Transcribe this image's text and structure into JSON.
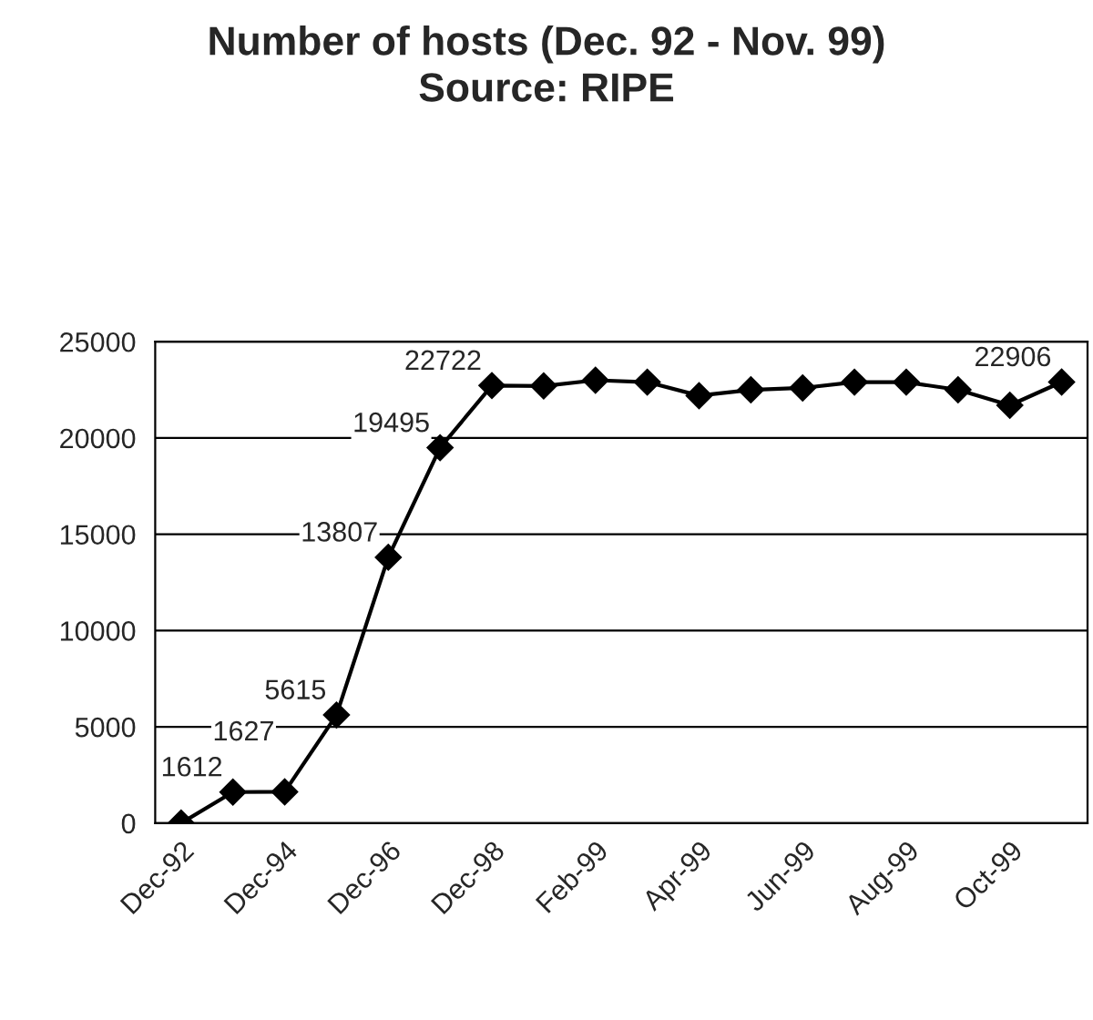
{
  "chart_data": {
    "type": "line",
    "title": "Number of hosts (Dec. 92 - Nov. 99)\nSource: RIPE",
    "categories": [
      "Dec-92",
      null,
      "Dec-94",
      null,
      "Dec-96",
      null,
      "Dec-98",
      null,
      "Feb-99",
      null,
      "Apr-99",
      null,
      "Jun-99",
      null,
      "Aug-99",
      null,
      "Oct-99",
      null
    ],
    "series": [
      {
        "color": "#000000",
        "values": [
          0,
          1612,
          1627,
          5615,
          13807,
          19495,
          22722,
          22700,
          23000,
          22900,
          22200,
          22500,
          22600,
          22900,
          22900,
          22500,
          21700,
          22906
        ],
        "value_labels": [
          null,
          "1612",
          "1627",
          "5615",
          "13807",
          "19495",
          "22722",
          null,
          null,
          null,
          null,
          null,
          null,
          null,
          null,
          null,
          null,
          "22906"
        ]
      }
    ],
    "ylim": [
      0,
      25000
    ],
    "yticks": [
      0,
      5000,
      10000,
      15000,
      20000,
      25000
    ],
    "grid": "y",
    "marker": "diamond",
    "line_style": "solid",
    "legend": false
  }
}
